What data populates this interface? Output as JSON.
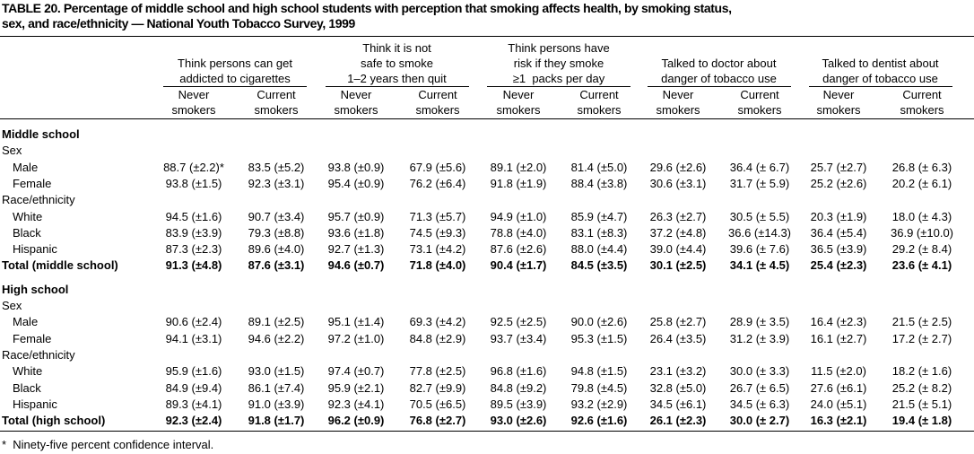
{
  "title": [
    "TABLE 20. Percentage of middle school and high school students with perception that smoking affects health, by smoking status,",
    "sex, and race/ethnicity — National Youth Tobacco Survey, 1999"
  ],
  "column_groups": [
    {
      "title": [
        "Think persons can get",
        "addicted to cigarettes"
      ],
      "columns": [
        [
          "Never",
          "smokers"
        ],
        [
          "Current",
          "smokers"
        ]
      ]
    },
    {
      "title": [
        "Think it is not",
        "safe to smoke",
        "1–2 years then quit"
      ],
      "columns": [
        [
          "Never",
          "smokers"
        ],
        [
          "Current",
          "smokers"
        ]
      ]
    },
    {
      "title": [
        "Think persons have",
        "risk if they smoke",
        "≥1  packs per day"
      ],
      "columns": [
        [
          "Never",
          "smokers"
        ],
        [
          "Current",
          "smokers"
        ]
      ]
    },
    {
      "title": [
        "Talked to doctor about",
        "danger of tobacco use"
      ],
      "columns": [
        [
          "Never",
          "smokers"
        ],
        [
          "Current",
          "smokers"
        ]
      ]
    },
    {
      "title": [
        "Talked to dentist about",
        "danger of tobacco use"
      ],
      "columns": [
        [
          "Never",
          "smokers"
        ],
        [
          "Current",
          "smokers"
        ]
      ]
    }
  ],
  "sections": [
    {
      "title": "Middle school",
      "groups": [
        {
          "title": "Sex",
          "rows": [
            {
              "label": "Male",
              "cells": [
                "88.7 (±2.2)*",
                "83.5 (±5.2)",
                "93.8 (±0.9)",
                "67.9 (±5.6)",
                "89.1 (±2.0)",
                "81.4 (±5.0)",
                "29.6 (±2.6)",
                "36.4 (± 6.7)",
                "25.7 (±2.7)",
                "26.8 (± 6.3)"
              ]
            },
            {
              "label": "Female",
              "cells": [
                "93.8 (±1.5)",
                "92.3 (±3.1)",
                "95.4 (±0.9)",
                "76.2 (±6.4)",
                "91.8 (±1.9)",
                "88.4 (±3.8)",
                "30.6 (±3.1)",
                "31.7 (± 5.9)",
                "25.2 (±2.6)",
                "20.2 (± 6.1)"
              ]
            }
          ]
        },
        {
          "title": "Race/ethnicity",
          "rows": [
            {
              "label": "White",
              "cells": [
                "94.5 (±1.6)",
                "90.7 (±3.4)",
                "95.7 (±0.9)",
                "71.3 (±5.7)",
                "94.9 (±1.0)",
                "85.9 (±4.7)",
                "26.3 (±2.7)",
                "30.5 (± 5.5)",
                "20.3 (±1.9)",
                "18.0 (± 4.3)"
              ]
            },
            {
              "label": "Black",
              "cells": [
                "83.9 (±3.9)",
                "79.3 (±8.8)",
                "93.6 (±1.8)",
                "74.5 (±9.3)",
                "78.8 (±4.0)",
                "83.1 (±8.3)",
                "37.2 (±4.8)",
                "36.6 (±14.3)",
                "36.4 (±5.4)",
                "36.9 (±10.0)"
              ]
            },
            {
              "label": "Hispanic",
              "cells": [
                "87.3 (±2.3)",
                "89.6 (±4.0)",
                "92.7 (±1.3)",
                "73.1 (±4.2)",
                "87.6 (±2.6)",
                "88.0 (±4.4)",
                "39.0 (±4.4)",
                "39.6 (± 7.6)",
                "36.5 (±3.9)",
                "29.2 (± 8.4)"
              ]
            }
          ]
        }
      ],
      "total": {
        "label": "Total (middle school)",
        "cells": [
          "91.3 (±4.8)",
          "87.6 (±3.1)",
          "94.6 (±0.7)",
          "71.8 (±4.0)",
          "90.4 (±1.7)",
          "84.5 (±3.5)",
          "30.1 (±2.5)",
          "34.1 (± 4.5)",
          "25.4 (±2.3)",
          "23.6 (± 4.1)"
        ]
      }
    },
    {
      "title": "High school",
      "groups": [
        {
          "title": "Sex",
          "rows": [
            {
              "label": "Male",
              "cells": [
                "90.6 (±2.4)",
                "89.1 (±2.5)",
                "95.1 (±1.4)",
                "69.3 (±4.2)",
                "92.5 (±2.5)",
                "90.0 (±2.6)",
                "25.8 (±2.7)",
                "28.9 (± 3.5)",
                "16.4 (±2.3)",
                "21.5 (± 2.5)"
              ]
            },
            {
              "label": "Female",
              "cells": [
                "94.1 (±3.1)",
                "94.6 (±2.2)",
                "97.2 (±1.0)",
                "84.8 (±2.9)",
                "93.7 (±3.4)",
                "95.3 (±1.5)",
                "26.4 (±3.5)",
                "31.2 (± 3.9)",
                "16.1 (±2.7)",
                "17.2 (± 2.7)"
              ]
            }
          ]
        },
        {
          "title": "Race/ethnicity",
          "rows": [
            {
              "label": "White",
              "cells": [
                "95.9 (±1.6)",
                "93.0 (±1.5)",
                "97.4 (±0.7)",
                "77.8 (±2.5)",
                "96.8 (±1.6)",
                "94.8 (±1.5)",
                "23.1 (±3.2)",
                "30.0 (± 3.3)",
                "11.5 (±2.0)",
                "18.2 (± 1.6)"
              ]
            },
            {
              "label": "Black",
              "cells": [
                "84.9 (±9.4)",
                "86.1 (±7.4)",
                "95.9 (±2.1)",
                "82.7 (±9.9)",
                "84.8 (±9.2)",
                "79.8 (±4.5)",
                "32.8 (±5.0)",
                "26.7 (± 6.5)",
                "27.6 (±6.1)",
                "25.2 (± 8.2)"
              ]
            },
            {
              "label": "Hispanic",
              "cells": [
                "89.3 (±4.1)",
                "91.0 (±3.9)",
                "92.3 (±4.1)",
                "70.5 (±6.5)",
                "89.5 (±3.9)",
                "93.2 (±2.9)",
                "34.5 (±6.1)",
                "34.5 (± 6.3)",
                "24.0 (±5.1)",
                "21.5 (± 5.1)"
              ]
            }
          ]
        }
      ],
      "total": {
        "label": "Total (high school)",
        "cells": [
          "92.3 (±2.4)",
          "91.8 (±1.7)",
          "96.2 (±0.9)",
          "76.8 (±2.7)",
          "93.0 (±2.6)",
          "92.6 (±1.6)",
          "26.1 (±2.3)",
          "30.0 (± 2.7)",
          "16.3 (±2.1)",
          "19.4 (± 1.8)"
        ]
      }
    }
  ],
  "footnote": "*  Ninety-five percent confidence interval."
}
